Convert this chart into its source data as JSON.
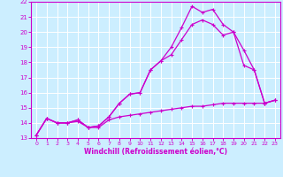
{
  "xlabel": "Windchill (Refroidissement éolien,°C)",
  "bg_color": "#cceeff",
  "grid_color": "#ffffff",
  "line_color": "#cc00cc",
  "xlim": [
    -0.5,
    23.5
  ],
  "ylim": [
    13,
    22
  ],
  "xticks": [
    0,
    1,
    2,
    3,
    4,
    5,
    6,
    7,
    8,
    9,
    10,
    11,
    12,
    13,
    14,
    15,
    16,
    17,
    18,
    19,
    20,
    21,
    22,
    23
  ],
  "yticks": [
    13,
    14,
    15,
    16,
    17,
    18,
    19,
    20,
    21,
    22
  ],
  "line1_x": [
    0,
    1,
    2,
    3,
    4,
    5,
    6,
    7,
    8,
    9,
    10,
    11,
    12,
    13,
    14,
    15,
    16,
    17,
    18,
    19,
    20,
    21,
    22,
    23
  ],
  "line1_y": [
    13.2,
    14.3,
    14.0,
    14.0,
    14.2,
    13.7,
    13.8,
    14.4,
    15.3,
    15.9,
    16.0,
    17.5,
    18.1,
    19.0,
    20.3,
    21.7,
    21.3,
    21.5,
    20.5,
    20.0,
    17.8,
    17.5,
    15.3,
    15.5
  ],
  "line2_x": [
    0,
    1,
    2,
    3,
    4,
    5,
    6,
    7,
    8,
    9,
    10,
    11,
    12,
    13,
    14,
    15,
    16,
    17,
    18,
    19,
    20,
    21,
    22,
    23
  ],
  "line2_y": [
    13.2,
    14.3,
    14.0,
    14.0,
    14.2,
    13.7,
    13.8,
    14.4,
    15.3,
    15.9,
    16.0,
    17.5,
    18.1,
    18.5,
    19.5,
    20.5,
    20.8,
    20.5,
    19.8,
    20.0,
    18.8,
    17.5,
    15.3,
    15.5
  ],
  "line3_x": [
    0,
    1,
    2,
    3,
    4,
    5,
    6,
    7,
    8,
    9,
    10,
    11,
    12,
    13,
    14,
    15,
    16,
    17,
    18,
    19,
    20,
    21,
    22,
    23
  ],
  "line3_y": [
    13.2,
    14.3,
    14.0,
    14.0,
    14.1,
    13.7,
    13.7,
    14.2,
    14.4,
    14.5,
    14.6,
    14.7,
    14.8,
    14.9,
    15.0,
    15.1,
    15.1,
    15.2,
    15.3,
    15.3,
    15.3,
    15.3,
    15.3,
    15.5
  ]
}
